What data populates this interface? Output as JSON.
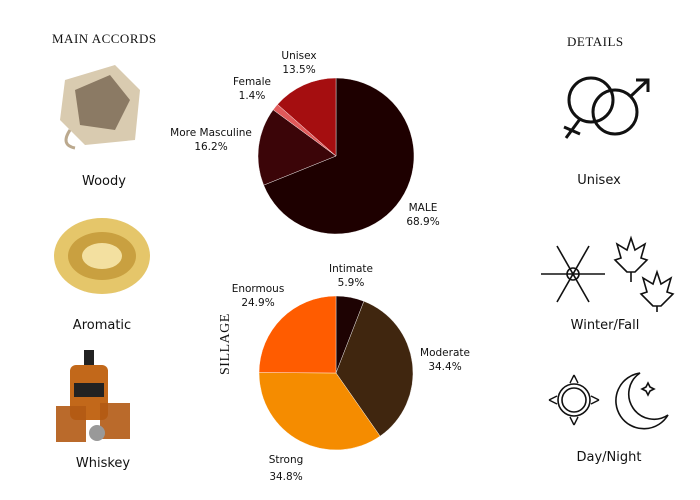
{
  "headers": {
    "main_accords": "MAIN ACCORDS",
    "details": "DETAILS",
    "sillage": "SILLAGE"
  },
  "accords": [
    {
      "label": "Woody",
      "icon": "wood-image"
    },
    {
      "label": "Aromatic",
      "icon": "nest-image"
    },
    {
      "label": "Whiskey",
      "icon": "whiskey-image"
    }
  ],
  "details": [
    {
      "label": "Unisex",
      "icon": "gender-symbols-icon"
    },
    {
      "label": "Winter/Fall",
      "icon": "snowflake-leaves-icon"
    },
    {
      "label": "Day/Night",
      "icon": "sun-moon-icon"
    }
  ],
  "chart_data": [
    {
      "type": "pie",
      "title": "",
      "start": "top",
      "direction": "clockwise",
      "slices": [
        {
          "name": "MALE",
          "value": 68.9,
          "label": "68.9%",
          "color": "#1e0000"
        },
        {
          "name": "More Masculine",
          "value": 16.2,
          "label": "16.2%",
          "color": "#3b0508"
        },
        {
          "name": "Female",
          "value": 1.4,
          "label": "1.4%",
          "color": "#e05a5a"
        },
        {
          "name": "Unisex",
          "value": 13.5,
          "label": "13.5%",
          "color": "#a50e10"
        }
      ]
    },
    {
      "type": "pie",
      "title": "SILLAGE",
      "start": "top",
      "direction": "clockwise",
      "slices": [
        {
          "name": "Intimate",
          "value": 5.9,
          "label": "5.9%",
          "color": "#1e0303"
        },
        {
          "name": "Moderate",
          "value": 34.4,
          "label": "34.4%",
          "color": "#40260f"
        },
        {
          "name": "Strong",
          "value": 34.8,
          "label": "34.8%",
          "color": "#f58c00"
        },
        {
          "name": "Enormous",
          "value": 24.9,
          "label": "24.9%",
          "color": "#ff5c00"
        }
      ]
    }
  ]
}
